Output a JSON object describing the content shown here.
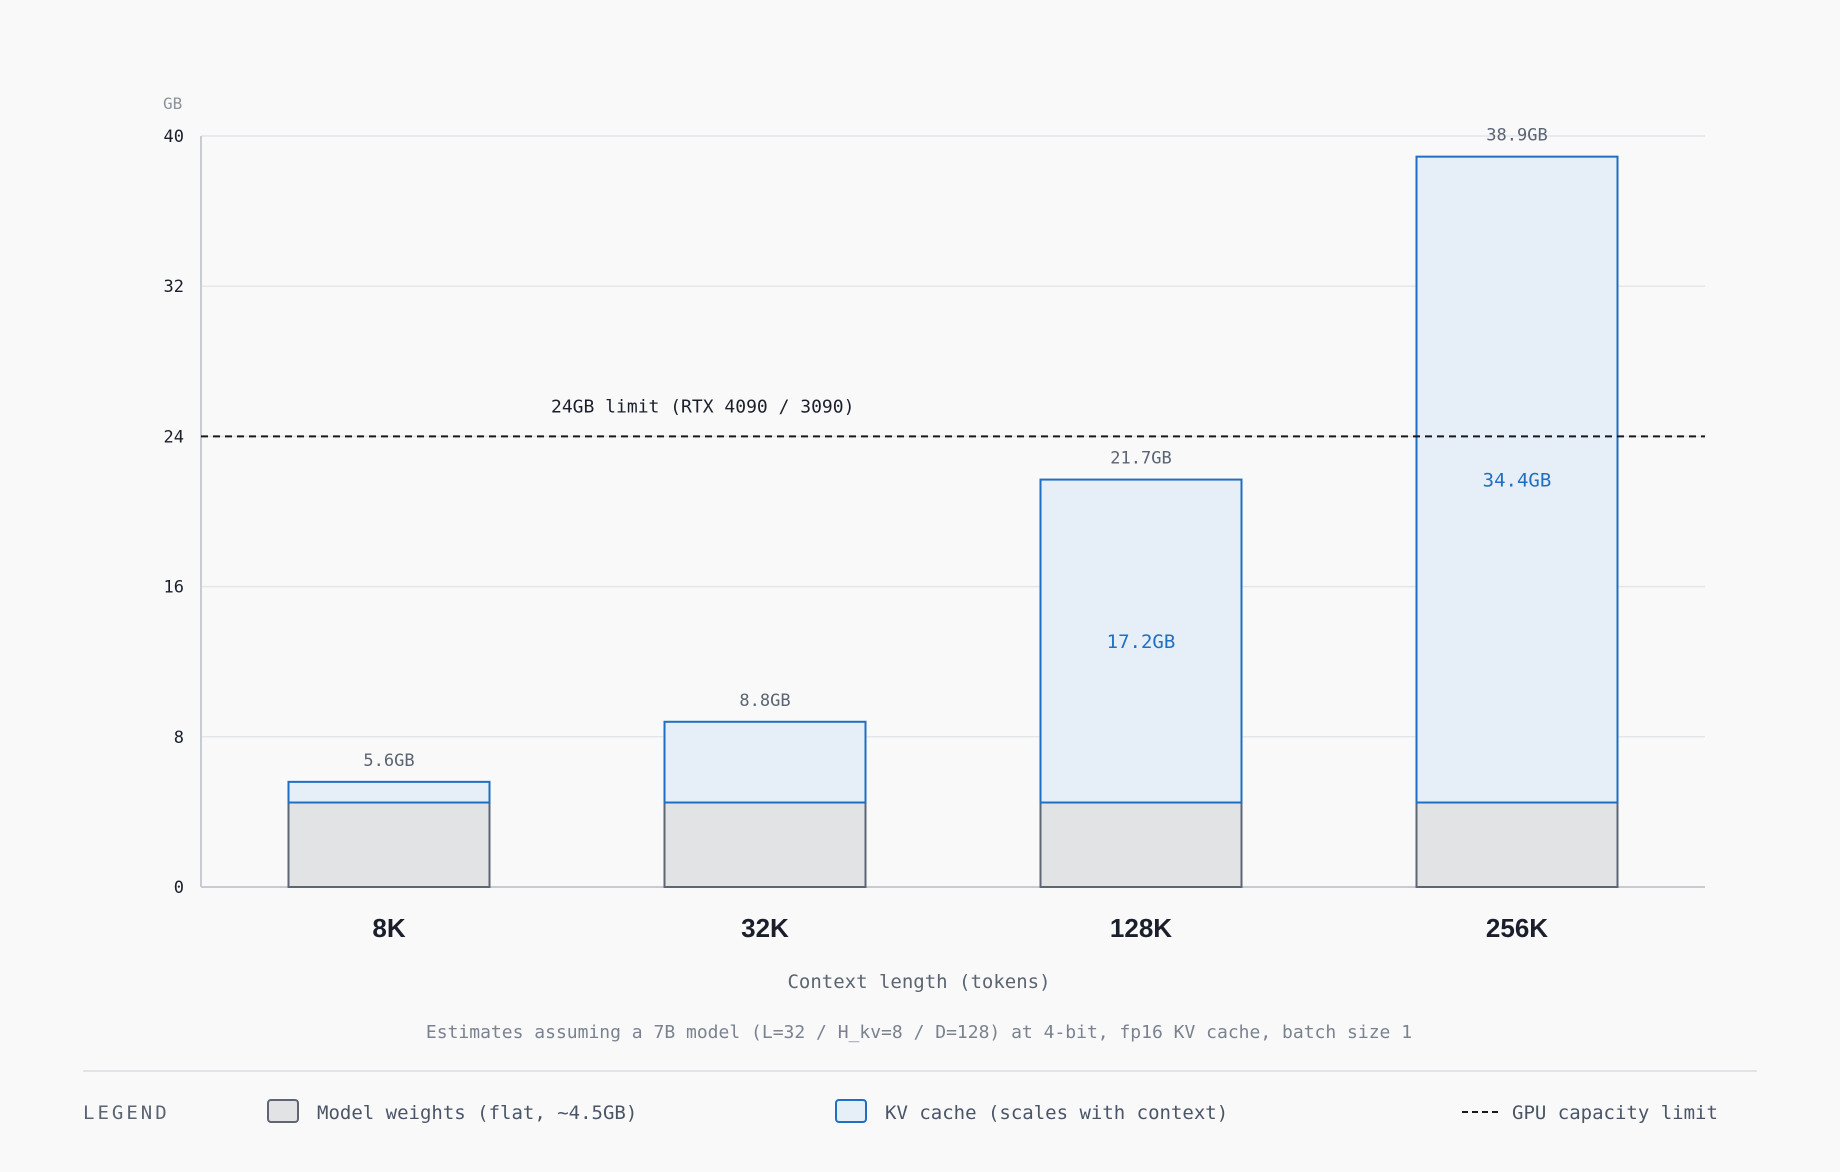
{
  "chart_data": {
    "type": "bar",
    "stacked": true,
    "categories": [
      "8K",
      "32K",
      "128K",
      "256K"
    ],
    "series": [
      {
        "name": "Model weights (flat, ~4.5GB)",
        "values": [
          4.5,
          4.5,
          4.5,
          4.5
        ]
      },
      {
        "name": "KV cache (scales with context)",
        "values": [
          1.1,
          4.3,
          17.2,
          34.4
        ]
      }
    ],
    "totals": [
      "5.6GB",
      "8.8GB",
      "21.7GB",
      "38.9GB"
    ],
    "kv_labels": [
      "",
      "",
      "17.2GB",
      "34.4GB"
    ],
    "y_unit": "GB",
    "y_ticks": [
      0,
      8,
      16,
      24,
      32,
      40
    ],
    "ylim": [
      0,
      40
    ],
    "xlabel": "Context length (tokens)",
    "reference_line": {
      "value": 24,
      "label": "24GB limit (RTX 4090 / 3090)"
    },
    "footnote": "Estimates assuming a 7B model (L=32 / H_kv=8 / D=128) at 4-bit, fp16 KV cache, batch size 1",
    "grid": true,
    "colors": {
      "weights_fill": "#e2e3e5",
      "weights_stroke": "#5d6675",
      "kv_fill": "#e6eef7",
      "kv_stroke": "#1f6fc4",
      "kv_label": "#1f6fc4",
      "limit_line": "#1a1a1a",
      "grid": "#e4e6ea",
      "axis": "#c8ccd2",
      "text_muted": "#5a6472",
      "text_dark": "#1a1f2b"
    }
  },
  "legend": {
    "title": "LEGEND",
    "weights": "Model weights (flat, ~4.5GB)",
    "kv": "KV cache (scales with context)",
    "gpu": "GPU capacity limit"
  }
}
